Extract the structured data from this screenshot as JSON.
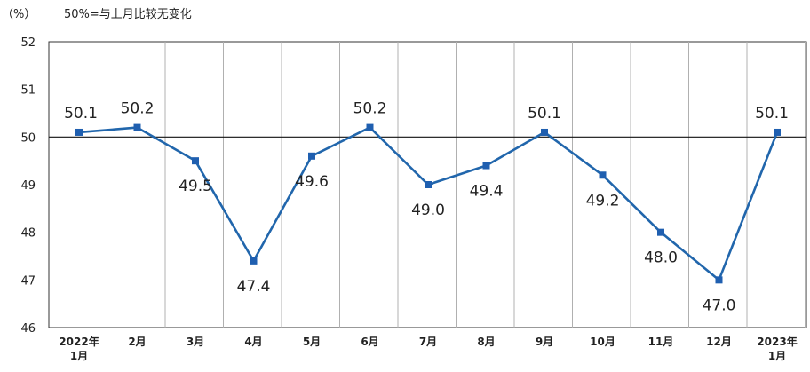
{
  "header": {
    "unit": "（%）",
    "note": "50%=与上月比较无变化"
  },
  "colors": {
    "line": "#2166ac",
    "marker": "#1f5fb0",
    "grid": "#b0b0b0",
    "reference": "#111111"
  },
  "chart_data": {
    "type": "line",
    "title": "",
    "xlabel": "",
    "ylabel": "（%）",
    "ylim": [
      46,
      52
    ],
    "yticks": [
      46,
      47,
      48,
      49,
      50,
      51,
      52
    ],
    "reference_line": 50,
    "grid": "vertical",
    "categories": [
      [
        "2022年",
        "1月"
      ],
      [
        "2月"
      ],
      [
        "3月"
      ],
      [
        "4月"
      ],
      [
        "5月"
      ],
      [
        "6月"
      ],
      [
        "7月"
      ],
      [
        "8月"
      ],
      [
        "9月"
      ],
      [
        "10月"
      ],
      [
        "11月"
      ],
      [
        "12月"
      ],
      [
        "2023年",
        "1月"
      ]
    ],
    "series": [
      {
        "values": [
          50.1,
          50.2,
          49.5,
          47.4,
          49.6,
          50.2,
          49.0,
          49.4,
          50.1,
          49.2,
          48.0,
          47.0,
          50.1
        ],
        "labels": [
          "50.1",
          "50.2",
          "49.5",
          "47.4",
          "49.6",
          "50.2",
          "49.0",
          "49.4",
          "50.1",
          "49.2",
          "48.0",
          "47.0",
          "50.1"
        ]
      }
    ]
  }
}
